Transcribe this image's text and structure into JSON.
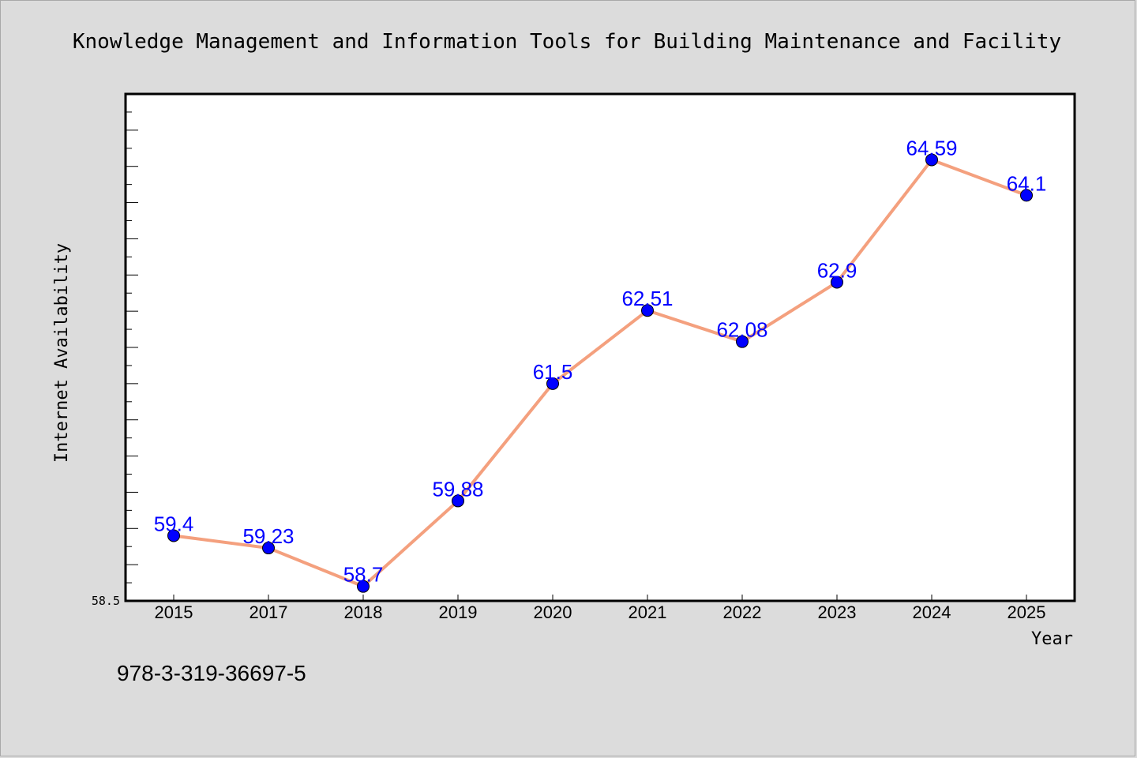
{
  "chart_data": {
    "type": "line",
    "title": "Knowledge Management and Information Tools for Building Maintenance and Facility",
    "xlabel": "Year",
    "ylabel": "Internet Availability",
    "categories": [
      "2015",
      "2017",
      "2018",
      "2019",
      "2020",
      "2021",
      "2022",
      "2023",
      "2024",
      "2025"
    ],
    "series": [
      {
        "values": [
          59.4,
          59.23,
          58.7,
          59.88,
          61.5,
          62.51,
          62.08,
          62.9,
          64.59,
          64.1
        ],
        "labels": [
          "59.4",
          "59.23",
          "58.7",
          "59.88",
          "61.5",
          "62.51",
          "62.08",
          "62.9",
          "64.59",
          "64.1"
        ]
      }
    ],
    "ylim": [
      58.5,
      65.5
    ],
    "ytick_labels": [
      "58.5"
    ],
    "grid": false,
    "line_color": "#f4a07e",
    "marker_color": "#0000ff",
    "label_color": "#0000ff"
  },
  "footer": {
    "isbn": "978-3-319-36697-5"
  }
}
